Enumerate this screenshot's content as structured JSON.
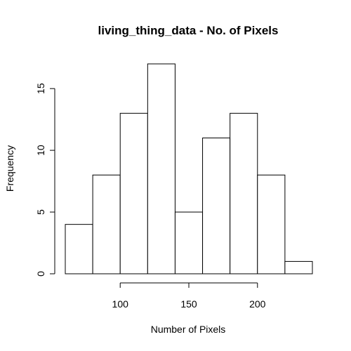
{
  "chart_data": {
    "type": "bar",
    "title": "living_thing_data - No. of Pixels",
    "xlabel": "Number of Pixels",
    "ylabel": "Frequency",
    "bins": [
      {
        "start": 60,
        "end": 80,
        "count": 4
      },
      {
        "start": 80,
        "end": 100,
        "count": 8
      },
      {
        "start": 100,
        "end": 120,
        "count": 13
      },
      {
        "start": 120,
        "end": 140,
        "count": 17
      },
      {
        "start": 140,
        "end": 160,
        "count": 5
      },
      {
        "start": 160,
        "end": 180,
        "count": 11
      },
      {
        "start": 180,
        "end": 200,
        "count": 13
      },
      {
        "start": 200,
        "end": 220,
        "count": 8
      },
      {
        "start": 220,
        "end": 240,
        "count": 1
      }
    ],
    "xlim": [
      60,
      240
    ],
    "ylim": [
      0,
      17
    ],
    "x_axis_range": [
      100,
      200
    ],
    "x_ticks": [
      100,
      150,
      200
    ],
    "y_ticks": [
      0,
      5,
      10,
      15
    ],
    "grid": false,
    "legend": "none"
  }
}
